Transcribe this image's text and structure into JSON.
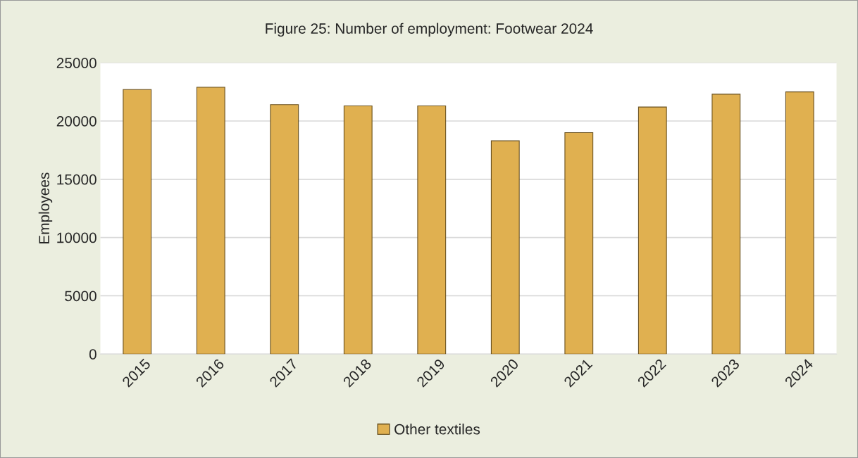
{
  "chart_data": {
    "type": "bar",
    "title": "Figure 25: Number of employment: Footwear 2024",
    "ylabel": "Employees",
    "categories": [
      "2015",
      "2016",
      "2017",
      "2018",
      "2019",
      "2020",
      "2021",
      "2022",
      "2023",
      "2024"
    ],
    "series": [
      {
        "name": "Other textiles",
        "color": "#e0b050",
        "values": [
          22700,
          22900,
          21400,
          21300,
          21300,
          18300,
          19000,
          21200,
          22300,
          22500
        ]
      }
    ],
    "ylim": [
      0,
      25000
    ],
    "yticks": [
      0,
      5000,
      10000,
      15000,
      20000,
      25000
    ],
    "grid": "y",
    "legend": "bottom"
  }
}
